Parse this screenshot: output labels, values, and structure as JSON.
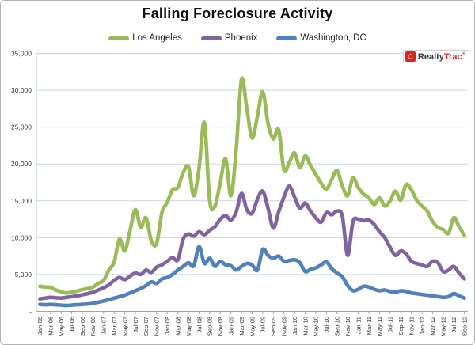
{
  "logo": {
    "realty": "Realty",
    "trac": "Trac",
    "reg": "®"
  },
  "chart_data": {
    "type": "line",
    "title": "Falling Foreclosure Activity",
    "xlabel": "",
    "ylabel": "",
    "ylim": [
      0,
      35000
    ],
    "grid": "horizontal",
    "legend_position": "top",
    "line_style": "smoothed, thick",
    "y_ticks": {
      "labels": [
        "35,000",
        "30,000",
        "25,000",
        "20,000",
        "15,000",
        "10,000",
        "5,000",
        "-"
      ],
      "values": [
        35000,
        30000,
        25000,
        20000,
        15000,
        10000,
        5000,
        0
      ]
    },
    "x_ticks": {
      "every_nth_point": 2,
      "labels": [
        "Jan-06",
        "Mar-06",
        "May-06",
        "Jul-06",
        "Sep-06",
        "Nov-06",
        "Jan-07",
        "Mar-07",
        "May-07",
        "Jul-07",
        "Sep-07",
        "Nov-07",
        "Jan-08",
        "Mar-08",
        "May-08",
        "Jul-08",
        "Sep-08",
        "Nov-08",
        "Jan-09",
        "Mar-09",
        "May-09",
        "Jul-09",
        "Sep-09",
        "Nov-09",
        "Jan-10",
        "Mar-10",
        "May-10",
        "Jul-10",
        "Sep-10",
        "Nov-10",
        "Jan-11",
        "Mar-11",
        "May-11",
        "Jul-11",
        "Sep-11",
        "Nov-11",
        "Jan-12",
        "Mar-12",
        "May-12",
        "Jul-12",
        "Sep-12"
      ]
    },
    "colors": {
      "grid": "#c9d6e2",
      "axis": "#9aa7ae",
      "tick_text": "#333333",
      "title_text": "#111111"
    },
    "series": [
      {
        "name": "Los Angeles",
        "color": "#9BBB59",
        "values": [
          3400,
          3300,
          3250,
          2900,
          2650,
          2500,
          2600,
          2750,
          2950,
          3100,
          3300,
          3800,
          4200,
          5600,
          6700,
          9800,
          8200,
          11000,
          13800,
          11400,
          12700,
          9600,
          9200,
          13400,
          14800,
          16500,
          16800,
          18800,
          19600,
          15700,
          19500,
          25600,
          15000,
          14300,
          17500,
          20700,
          15700,
          22000,
          31500,
          27500,
          23500,
          26500,
          29800,
          25500,
          23400,
          24600,
          19200,
          20200,
          21500,
          19500,
          21100,
          19800,
          18600,
          17400,
          16600,
          17900,
          19100,
          17000,
          15700,
          18100,
          16800,
          15900,
          15400,
          14500,
          15400,
          14300,
          15000,
          16300,
          15100,
          17200,
          16500,
          15100,
          14300,
          13600,
          12200,
          11400,
          11100,
          10600,
          12700,
          11500,
          10300
        ]
      },
      {
        "name": "Phoenix",
        "color": "#8064A2",
        "values": [
          1700,
          1800,
          1900,
          1850,
          1800,
          1900,
          2000,
          2100,
          2250,
          2400,
          2600,
          2900,
          3200,
          3600,
          4200,
          4600,
          4300,
          4800,
          5200,
          5000,
          5600,
          5300,
          6000,
          6300,
          6800,
          7300,
          7000,
          9800,
          10500,
          10200,
          10800,
          10400,
          11000,
          11500,
          12500,
          13000,
          12400,
          13500,
          16000,
          13800,
          13300,
          15200,
          16300,
          14000,
          11300,
          13500,
          15500,
          17000,
          15500,
          14000,
          14700,
          13600,
          12700,
          12100,
          13400,
          13100,
          13600,
          12900,
          7600,
          12200,
          12500,
          12300,
          12400,
          11800,
          10800,
          10000,
          8700,
          7600,
          8200,
          7800,
          6800,
          6500,
          6300,
          6100,
          6800,
          6600,
          5400,
          5600,
          6100,
          5200,
          4400
        ]
      },
      {
        "name": "Washington, DC",
        "color": "#4F81BD",
        "values": [
          950,
          900,
          950,
          900,
          850,
          800,
          850,
          900,
          950,
          1000,
          1100,
          1250,
          1400,
          1600,
          1800,
          2000,
          2200,
          2500,
          2800,
          3100,
          3500,
          4000,
          3800,
          4400,
          4600,
          5000,
          5600,
          6100,
          6600,
          6200,
          8800,
          6500,
          7200,
          6100,
          6800,
          6300,
          6200,
          5600,
          6100,
          6500,
          6300,
          5600,
          8400,
          7600,
          7200,
          7500,
          6800,
          6900,
          7000,
          6600,
          5400,
          5700,
          5900,
          6300,
          6700,
          5800,
          5200,
          4700,
          3500,
          2800,
          3000,
          3400,
          3300,
          3000,
          2800,
          2900,
          2700,
          2600,
          2800,
          2700,
          2500,
          2400,
          2300,
          2200,
          2100,
          2000,
          1900,
          2000,
          2400,
          2100,
          1800
        ]
      }
    ]
  }
}
